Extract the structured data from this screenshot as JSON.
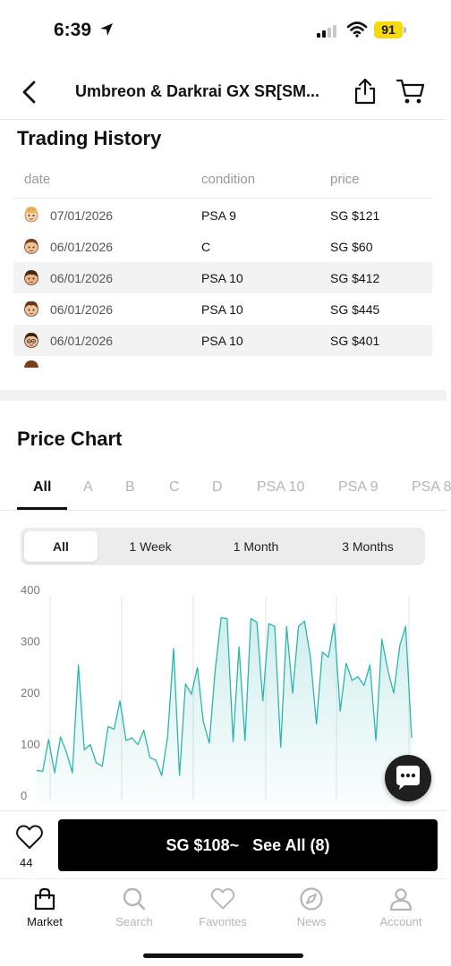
{
  "status_bar": {
    "time": "6:39",
    "battery": "91"
  },
  "nav": {
    "title": "Umbreon & Darkrai GX SR[SM..."
  },
  "trading_history": {
    "title": "Trading History",
    "columns": [
      "date",
      "condition",
      "price"
    ],
    "rows": [
      {
        "date": "07/01/2026",
        "condition": "PSA 9",
        "price": "SG $121"
      },
      {
        "date": "06/01/2026",
        "condition": "C",
        "price": "SG $60"
      },
      {
        "date": "06/01/2026",
        "condition": "PSA 10",
        "price": "SG $412"
      },
      {
        "date": "06/01/2026",
        "condition": "PSA 10",
        "price": "SG $445"
      },
      {
        "date": "06/01/2026",
        "condition": "PSA 10",
        "price": "SG $401"
      }
    ]
  },
  "price_chart": {
    "title": "Price Chart",
    "grade_tabs": [
      "All",
      "A",
      "B",
      "C",
      "D",
      "PSA 10",
      "PSA 9",
      "PSA 8"
    ],
    "active_grade": "All",
    "ranges": [
      "All",
      "1 Week",
      "1 Month",
      "3 Months"
    ],
    "active_range": "All"
  },
  "chart_data": {
    "type": "area",
    "y_ticks": [
      "400",
      "300",
      "200",
      "100",
      "0"
    ],
    "ylim": [
      0,
      400
    ],
    "grid": "vertical",
    "color": "#2bb5b0",
    "values": [
      50,
      48,
      110,
      45,
      115,
      85,
      45,
      255,
      90,
      100,
      65,
      58,
      135,
      130,
      185,
      108,
      113,
      100,
      128,
      75,
      70,
      40,
      115,
      287,
      40,
      218,
      198,
      250,
      145,
      103,
      245,
      347,
      345,
      106,
      290,
      108,
      345,
      338,
      185,
      335,
      330,
      95,
      330,
      200,
      330,
      340,
      270,
      140,
      280,
      270,
      335,
      165,
      258,
      225,
      232,
      215,
      255,
      108,
      305,
      245,
      200,
      292,
      330,
      113
    ]
  },
  "action_bar": {
    "favorite_count": "44",
    "buy_label": "SG $108~   See All (8)"
  },
  "tab_bar": {
    "items": [
      {
        "label": "Market",
        "icon": "shopping-bag-icon"
      },
      {
        "label": "Search",
        "icon": "search-icon"
      },
      {
        "label": "Favorites",
        "icon": "heart-icon"
      },
      {
        "label": "News",
        "icon": "compass-icon"
      },
      {
        "label": "Account",
        "icon": "person-icon"
      }
    ],
    "active": "Market"
  }
}
